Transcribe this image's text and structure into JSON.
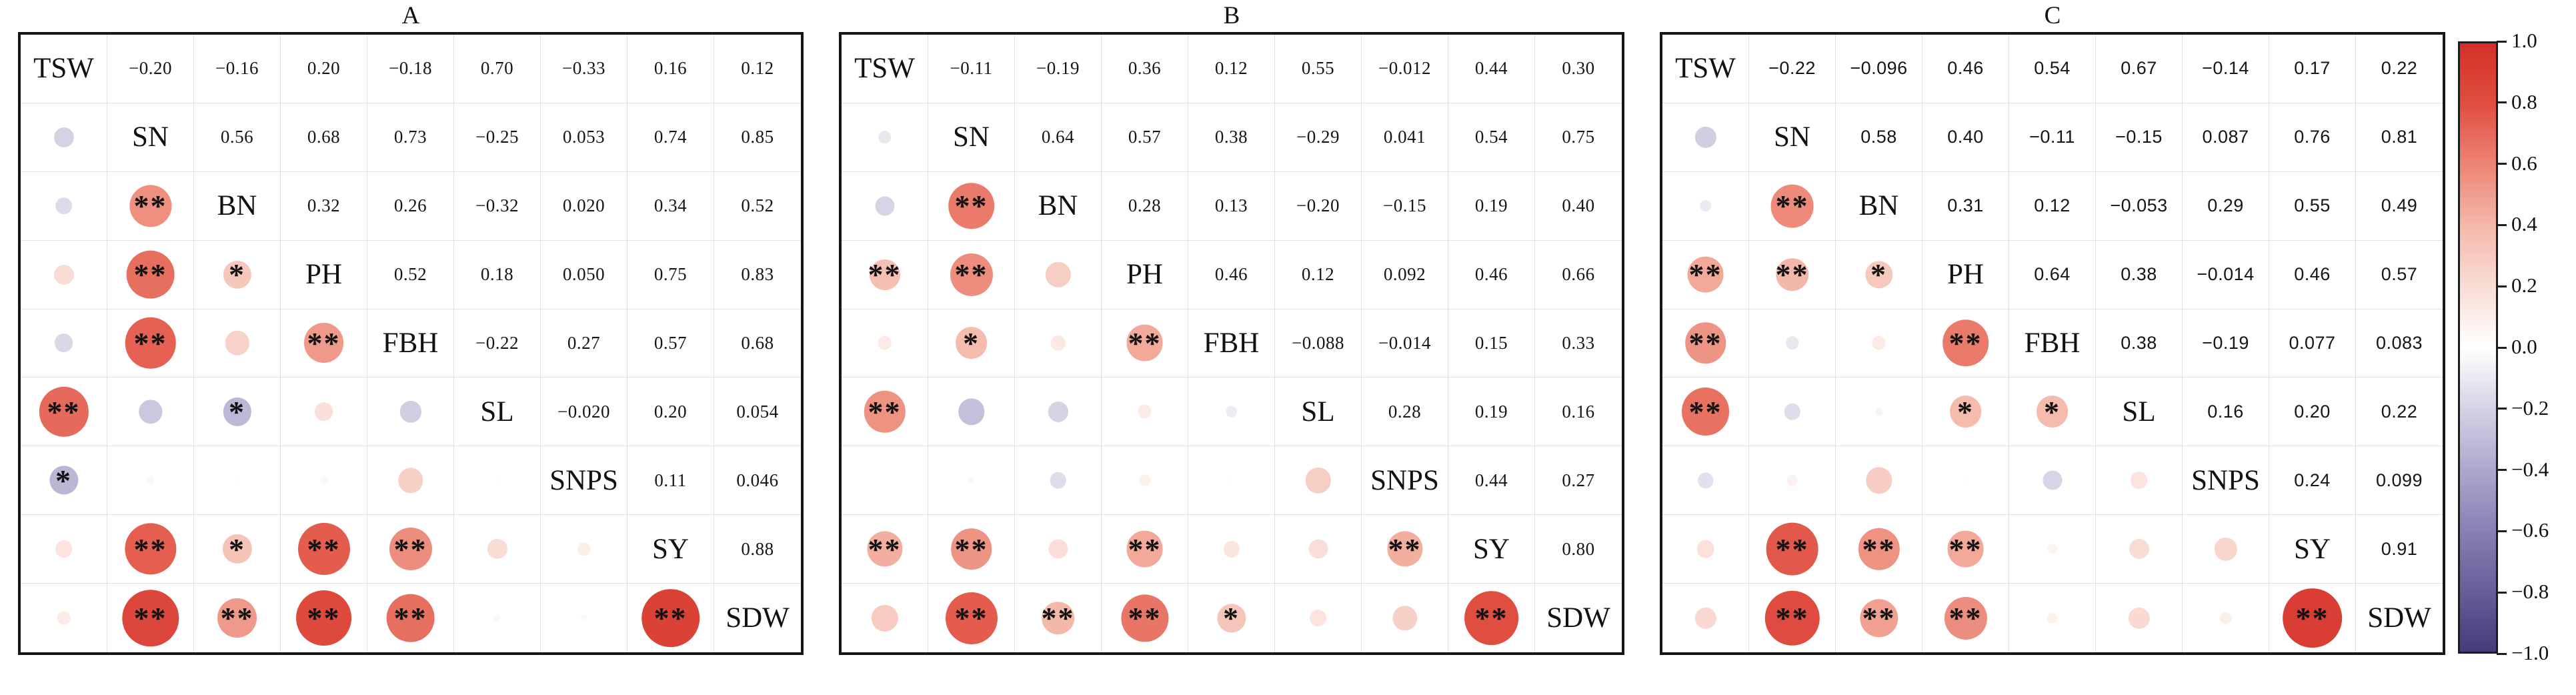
{
  "chart_data": {
    "type": "heatmap",
    "subtype": "correlation-matrix-multipanel",
    "value_range": [
      -1,
      1
    ],
    "legend_position": "right",
    "grid": true,
    "panels": [
      {
        "title": "A",
        "variables": [
          "TSW",
          "SN",
          "BN",
          "PH",
          "FBH",
          "SL",
          "SNPS",
          "SY",
          "SDW"
        ],
        "upper_values": [
          [
            "-0.20",
            "-0.16",
            "0.20",
            "-0.18",
            "0.70",
            "-0.33",
            "0.16",
            "0.12"
          ],
          [
            "0.56",
            "0.68",
            "0.73",
            "-0.25",
            "0.053",
            "0.74",
            "0.85"
          ],
          [
            "0.32",
            "0.26",
            "-0.32",
            "0.020",
            "0.34",
            "0.52"
          ],
          [
            "0.52",
            "0.18",
            "0.050",
            "0.75",
            "0.83"
          ],
          [
            "-0.22",
            "0.27",
            "0.57",
            "0.68"
          ],
          [
            "-0.020",
            "0.20",
            "0.054"
          ],
          [
            "0.11",
            "0.046"
          ],
          [
            "0.88"
          ]
        ],
        "stars": [
          [
            "",
            "",
            "",
            "",
            "**",
            "*",
            "",
            ""
          ],
          [
            "**",
            "**",
            "**",
            "",
            "",
            "**",
            "**"
          ],
          [
            "*",
            "",
            "*",
            "",
            "*",
            "**"
          ],
          [
            "**",
            "",
            "",
            "**",
            "**"
          ],
          [
            "",
            "",
            "**",
            "**"
          ],
          [
            "",
            "",
            ""
          ],
          [
            "",
            ""
          ],
          [
            "**"
          ]
        ]
      },
      {
        "title": "B",
        "variables": [
          "TSW",
          "SN",
          "BN",
          "PH",
          "FBH",
          "SL",
          "SNPS",
          "SY",
          "SDW"
        ],
        "upper_values": [
          [
            "-0.11",
            "-0.19",
            "0.36",
            "0.12",
            "0.55",
            "-0.012",
            "0.44",
            "0.30"
          ],
          [
            "0.64",
            "0.57",
            "0.38",
            "-0.29",
            "0.041",
            "0.54",
            "0.75"
          ],
          [
            "0.28",
            "0.13",
            "-0.20",
            "-0.15",
            "0.19",
            "0.40"
          ],
          [
            "0.46",
            "0.12",
            "0.092",
            "0.46",
            "0.66"
          ],
          [
            "-0.088",
            "-0.014",
            "0.15",
            "0.33"
          ],
          [
            "0.28",
            "0.19",
            "0.16"
          ],
          [
            "0.44",
            "0.27"
          ],
          [
            "0.80"
          ]
        ],
        "stars": [
          [
            "",
            "",
            "**",
            "",
            "**",
            "",
            "**",
            ""
          ],
          [
            "**",
            "**",
            "*",
            "",
            "",
            "**",
            "**"
          ],
          [
            "",
            "",
            "",
            "",
            "",
            "**"
          ],
          [
            "**",
            "",
            "",
            "**",
            "**"
          ],
          [
            "",
            "",
            "",
            "*"
          ],
          [
            "",
            "",
            ""
          ],
          [
            "**",
            ""
          ],
          [
            "**"
          ]
        ]
      },
      {
        "title": "C",
        "variables": [
          "TSW",
          "SN",
          "BN",
          "PH",
          "FBH",
          "SL",
          "SNPS",
          "SY",
          "SDW"
        ],
        "upper_values": [
          [
            "-0.22",
            "-0.096",
            "0.46",
            "0.54",
            "0.67",
            "-0.14",
            "0.17",
            "0.22"
          ],
          [
            "0.58",
            "0.40",
            "-0.11",
            "-0.15",
            "0.087",
            "0.76",
            "0.81"
          ],
          [
            "0.31",
            "0.12",
            "-0.053",
            "0.29",
            "0.55",
            "0.49"
          ],
          [
            "0.64",
            "0.38",
            "-0.014",
            "0.46",
            "0.57"
          ],
          [
            "0.38",
            "-0.19",
            "0.077",
            "0.083"
          ],
          [
            "0.16",
            "0.20",
            "0.22"
          ],
          [
            "0.24",
            "0.099"
          ],
          [
            "0.91"
          ]
        ],
        "stars": [
          [
            "",
            "",
            "**",
            "**",
            "**",
            "",
            "",
            ""
          ],
          [
            "**",
            "**",
            "",
            "",
            "",
            "**",
            "**"
          ],
          [
            "*",
            "",
            "",
            "",
            "**",
            "**"
          ],
          [
            "**",
            "*",
            "",
            "**",
            "**"
          ],
          [
            "*",
            "",
            "",
            ""
          ],
          [
            "",
            "",
            ""
          ],
          [
            "",
            ""
          ],
          [
            "**"
          ]
        ]
      }
    ],
    "colorbar": {
      "ticks": [
        "1.0",
        "0.8",
        "0.6",
        "0.4",
        "0.2",
        "0.0",
        "-0.2",
        "-0.4",
        "-0.6",
        "-0.8",
        "-1.0"
      ],
      "max_color": "#d32f28",
      "zero_color": "#ffffff",
      "min_color": "#453a7c"
    },
    "significance_symbols": [
      "**",
      "*"
    ]
  }
}
